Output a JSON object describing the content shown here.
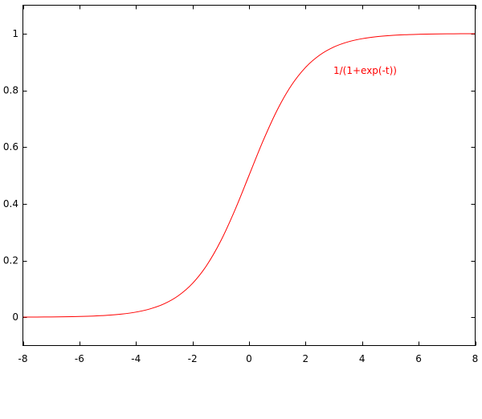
{
  "chart_data": {
    "type": "line",
    "title": "",
    "xlabel": "",
    "ylabel": "",
    "xlim": [
      -8,
      8
    ],
    "ylim": [
      -0.1,
      1.1
    ],
    "x_ticks": [
      -8,
      -6,
      -4,
      -2,
      0,
      2,
      4,
      6,
      8
    ],
    "x_tick_labels": [
      "-8",
      "-6",
      "-4",
      "-2",
      "0",
      "2",
      "4",
      "6",
      "8"
    ],
    "y_ticks": [
      0,
      0.2,
      0.4,
      0.6,
      0.8,
      1
    ],
    "y_tick_labels": [
      "0",
      "0.2",
      "0.4",
      "0.6",
      "0.8",
      "1"
    ],
    "grid": false,
    "legend_position": "top-right",
    "series": [
      {
        "name": "1/(1+exp(-t))",
        "color": "#ff0000",
        "x": [
          -8,
          -7.5,
          -7,
          -6.5,
          -6,
          -5.5,
          -5,
          -4.5,
          -4,
          -3.5,
          -3,
          -2.5,
          -2,
          -1.5,
          -1,
          -0.5,
          0,
          0.5,
          1,
          1.5,
          2,
          2.5,
          3,
          3.5,
          4,
          4.5,
          5,
          5.5,
          6,
          6.5,
          7,
          7.5,
          8
        ],
        "y": [
          0.0003,
          0.0006,
          0.0009,
          0.0015,
          0.0025,
          0.0041,
          0.0067,
          0.011,
          0.018,
          0.0293,
          0.0474,
          0.0759,
          0.1192,
          0.1824,
          0.2689,
          0.3775,
          0.5,
          0.6225,
          0.7311,
          0.8176,
          0.8808,
          0.9241,
          0.9526,
          0.9707,
          0.982,
          0.989,
          0.9933,
          0.9959,
          0.9975,
          0.9985,
          0.9991,
          0.9994,
          0.9997
        ]
      }
    ]
  }
}
